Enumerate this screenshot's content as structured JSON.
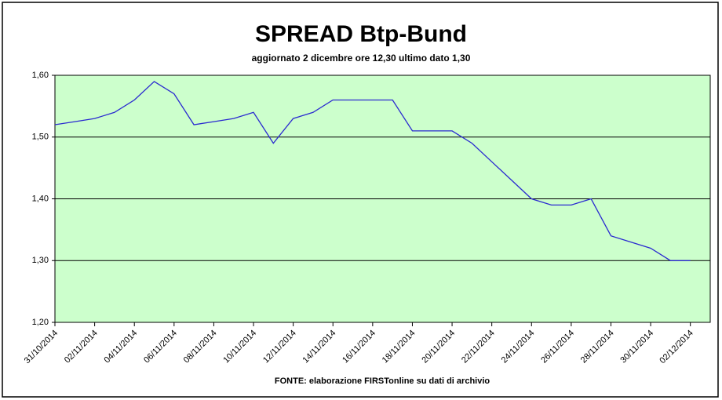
{
  "chart_data": {
    "type": "line",
    "title": "SPREAD Btp-Bund",
    "subtitle": "aggiornato 2 dicembre ore 12,30  ultimo dato  1,30",
    "source": "FONTE: elaborazione FIRSTonline su dati di archivio",
    "x": [
      "31/10/2014",
      "01/11/2014",
      "02/11/2014",
      "03/11/2014",
      "04/11/2014",
      "05/11/2014",
      "06/11/2014",
      "07/11/2014",
      "08/11/2014",
      "09/11/2014",
      "10/11/2014",
      "11/11/2014",
      "12/11/2014",
      "13/11/2014",
      "14/11/2014",
      "15/11/2014",
      "16/11/2014",
      "17/11/2014",
      "18/11/2014",
      "19/11/2014",
      "20/11/2014",
      "21/11/2014",
      "22/11/2014",
      "23/11/2014",
      "24/11/2014",
      "25/11/2014",
      "26/11/2014",
      "27/11/2014",
      "28/11/2014",
      "29/11/2014",
      "30/11/2014",
      "01/12/2014",
      "02/12/2014"
    ],
    "series": [
      {
        "color": "#2a2ad0",
        "values": [
          1.52,
          1.525,
          1.53,
          1.54,
          1.56,
          1.59,
          1.57,
          1.52,
          1.525,
          1.53,
          1.54,
          1.49,
          1.53,
          1.54,
          1.56,
          1.56,
          1.56,
          1.56,
          1.51,
          1.51,
          1.51,
          1.49,
          1.46,
          1.43,
          1.4,
          1.39,
          1.39,
          1.4,
          1.34,
          1.33,
          1.32,
          1.3,
          1.3
        ]
      }
    ],
    "xlim": [
      "31/10/2014",
      "03/12/2014"
    ],
    "xticks": [
      "31/10/2014",
      "02/11/2014",
      "04/11/2014",
      "06/11/2014",
      "08/11/2014",
      "10/11/2014",
      "12/11/2014",
      "14/11/2014",
      "16/11/2014",
      "18/11/2014",
      "20/11/2014",
      "22/11/2014",
      "24/11/2014",
      "26/11/2014",
      "28/11/2014",
      "30/11/2014",
      "02/12/2014"
    ],
    "ylim": [
      1.2,
      1.6
    ],
    "yticks": [
      {
        "value": 1.2,
        "label": "1,20"
      },
      {
        "value": 1.3,
        "label": "1,30"
      },
      {
        "value": 1.4,
        "label": "1,40"
      },
      {
        "value": 1.5,
        "label": "1,50"
      },
      {
        "value": 1.6,
        "label": "1,60"
      }
    ],
    "grid": true,
    "plot_background": "#ccffcc"
  }
}
